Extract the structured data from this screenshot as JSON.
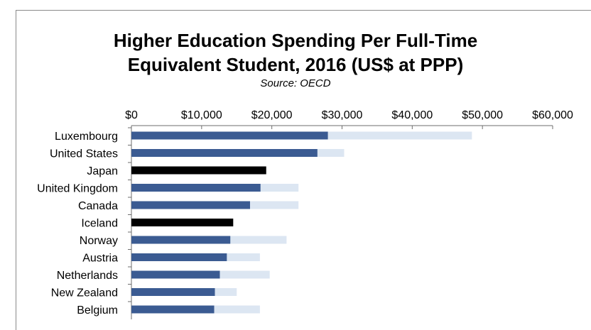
{
  "chart_data": {
    "type": "bar",
    "orientation": "horizontal",
    "stacked": true,
    "title": [
      "Higher Education Spending Per Full-Time",
      "Equivalent Student, 2016 (US$ at PPP)"
    ],
    "subtitle": "Source: OECD",
    "xlabel": "",
    "ylabel": "",
    "xlim": [
      0,
      60000
    ],
    "x_ticks": [
      "$0",
      "$10,000",
      "$20,000",
      "$30,000",
      "$40,000",
      "$50,000",
      "$60,000"
    ],
    "x_tick_values": [
      0,
      10000,
      20000,
      30000,
      40000,
      50000,
      60000
    ],
    "categories": [
      "Luxembourg",
      "United States",
      "Japan",
      "United Kingdom",
      "Canada",
      "Iceland",
      "Norway",
      "Austria",
      "Netherlands",
      "New Zealand",
      "Belgium"
    ],
    "series": [
      {
        "values": [
          28000,
          26500,
          19200,
          18400,
          16900,
          14500,
          14100,
          13600,
          12600,
          11900,
          11800
        ]
      },
      {
        "values": [
          20500,
          3800,
          0,
          5400,
          6900,
          0,
          8000,
          4700,
          7100,
          3100,
          6500
        ]
      }
    ],
    "colors": {
      "primary": "#3b5b92",
      "secondary": "#dce6f2",
      "highlight": "#000000"
    },
    "highlighted_categories": [
      "Japan",
      "Iceland"
    ],
    "grid": false,
    "legend": "none"
  }
}
